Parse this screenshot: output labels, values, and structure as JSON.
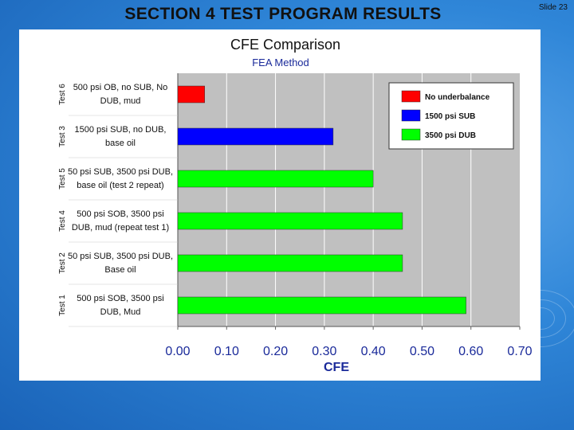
{
  "slide": {
    "title": "SECTION 4 TEST PROGRAM RESULTS",
    "number_label": "Slide 23"
  },
  "chart_data": {
    "type": "bar",
    "orientation": "horizontal",
    "title": "CFE Comparison",
    "subtitle": "FEA Method",
    "xlabel": "CFE",
    "xlim": [
      0,
      0.7
    ],
    "xticks": [
      "0.00",
      "0.10",
      "0.20",
      "0.30",
      "0.40",
      "0.50",
      "0.60",
      "0.70"
    ],
    "grid": "vertical",
    "legend_position": "top-right",
    "legend": [
      {
        "name": "No underbalance",
        "color": "#ff0000"
      },
      {
        "name": "1500 psi SUB",
        "color": "#0000ff"
      },
      {
        "name": "3500 psi DUB",
        "color": "#00ff00"
      }
    ],
    "bars": [
      {
        "test": "Test 6",
        "label_lines": [
          "500 psi OB, no SUB, No",
          "DUB, mud"
        ],
        "value": 0.055,
        "series": 0
      },
      {
        "test": "Test 3",
        "label_lines": [
          "1500 psi SUB, no DUB,",
          "base oil"
        ],
        "value": 0.318,
        "series": 1
      },
      {
        "test": "Test 5",
        "label_lines": [
          "50 psi SUB, 3500 psi DUB,",
          "base oil (test 2 repeat)"
        ],
        "value": 0.4,
        "series": 2
      },
      {
        "test": "Test 4",
        "label_lines": [
          "500 psi SOB, 3500 psi",
          "DUB, mud (repeat test 1)"
        ],
        "value": 0.46,
        "series": 2
      },
      {
        "test": "Test 2",
        "label_lines": [
          "50 psi SUB, 3500 psi DUB,",
          "Base oil"
        ],
        "value": 0.46,
        "series": 2
      },
      {
        "test": "Test 1",
        "label_lines": [
          "500 psi SOB, 3500 psi",
          "DUB, Mud"
        ],
        "value": 0.59,
        "series": 2
      }
    ],
    "plot_background": "#c0c0c0",
    "gridline_color": "#ffffff"
  }
}
